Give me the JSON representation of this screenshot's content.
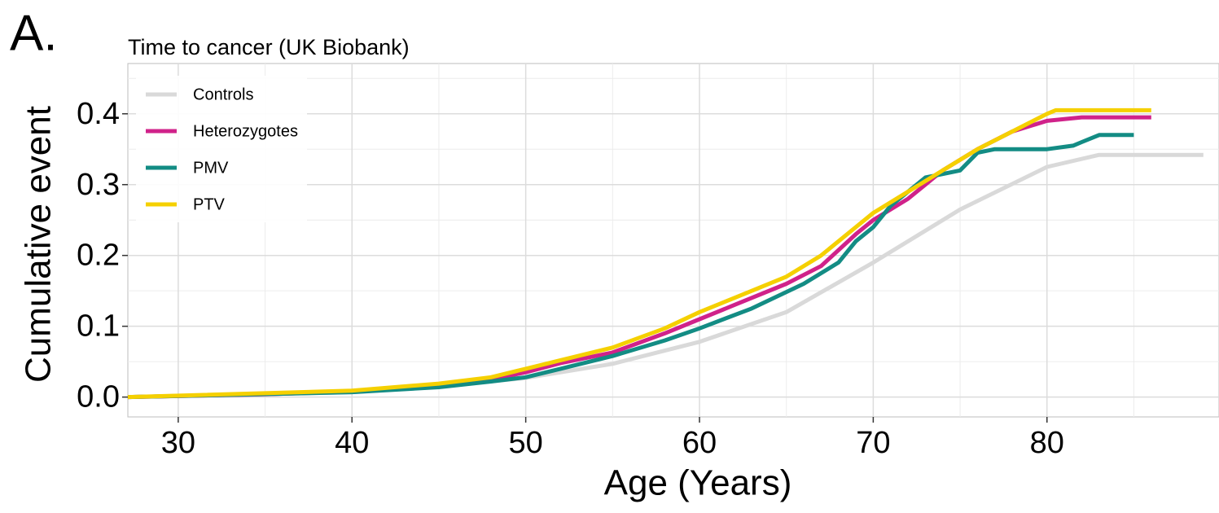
{
  "chart_data": {
    "type": "line",
    "panel_label": "A.",
    "title": "Time to cancer (UK Biobank)",
    "x_label": "Age (Years)",
    "y_label": "Cumulative event",
    "xlim": [
      27.1,
      89.9
    ],
    "xticks": [
      30,
      40,
      50,
      60,
      70,
      80
    ],
    "ylim": [
      -0.028,
      0.471
    ],
    "yticks": [
      {
        "value": 0,
        "label": "0.0"
      },
      0.1,
      0.2,
      0.3,
      0.4
    ],
    "grid": true,
    "legend": "top-left",
    "series": [
      {
        "name": "Controls",
        "color": "#d9d9d9",
        "x": [
          27.1,
          40,
          45,
          50,
          55,
          60,
          65,
          70,
          75,
          80,
          83,
          89
        ],
        "values": [
          0,
          0.007,
          0.015,
          0.027,
          0.047,
          0.078,
          0.12,
          0.19,
          0.265,
          0.325,
          0.342,
          0.342
        ]
      },
      {
        "name": "Heterozygotes",
        "color": "#d0228a",
        "x": [
          27.1,
          35,
          40,
          45,
          48,
          50,
          52,
          55,
          58,
          60,
          62,
          65,
          67,
          69,
          70,
          72,
          74,
          76,
          78,
          80,
          82,
          86
        ],
        "values": [
          0,
          0.004,
          0.008,
          0.017,
          0.025,
          0.035,
          0.048,
          0.063,
          0.09,
          0.11,
          0.13,
          0.16,
          0.185,
          0.23,
          0.25,
          0.28,
          0.32,
          0.35,
          0.375,
          0.39,
          0.395,
          0.395
        ]
      },
      {
        "name": "PMV",
        "color": "#138c84",
        "x": [
          27.1,
          40,
          45,
          48,
          50,
          52,
          55,
          58,
          60,
          63,
          66,
          68,
          69,
          70,
          71,
          72,
          73,
          75,
          76,
          77,
          80,
          81.5,
          82,
          83,
          85
        ],
        "values": [
          0,
          0.007,
          0.014,
          0.022,
          0.028,
          0.04,
          0.058,
          0.08,
          0.097,
          0.125,
          0.16,
          0.19,
          0.22,
          0.24,
          0.27,
          0.29,
          0.31,
          0.32,
          0.345,
          0.35,
          0.35,
          0.355,
          0.36,
          0.37,
          0.37
        ]
      },
      {
        "name": "PTV",
        "color": "#f5d000",
        "x": [
          27.1,
          40,
          45,
          48,
          50,
          52,
          55,
          58,
          60,
          62,
          65,
          67,
          69,
          70,
          72,
          74,
          76,
          78,
          80,
          80.5,
          86
        ],
        "values": [
          0,
          0.009,
          0.019,
          0.028,
          0.04,
          0.052,
          0.07,
          0.097,
          0.12,
          0.14,
          0.17,
          0.2,
          0.24,
          0.26,
          0.29,
          0.32,
          0.35,
          0.375,
          0.4,
          0.405,
          0.405
        ]
      }
    ]
  }
}
